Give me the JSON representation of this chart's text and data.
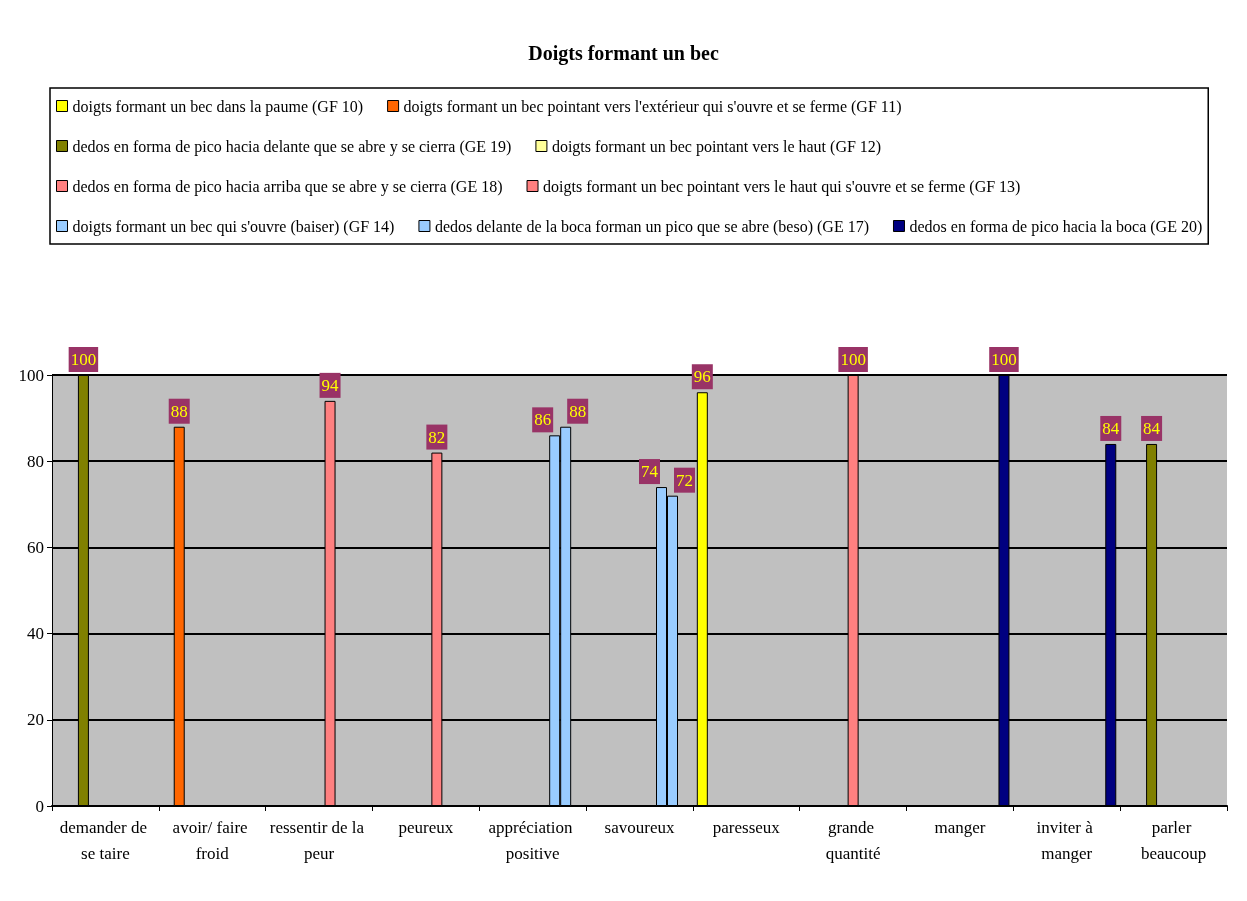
{
  "chart_data": {
    "type": "bar",
    "title": "Doigts formant un bec",
    "categories": [
      "demander de se taire",
      "avoir/ faire froid",
      "ressentir de la peur",
      "peureux",
      "appréciation positive",
      "savoureux",
      "paresseux",
      "grande quantité",
      "manger",
      "inviter à manger",
      "parler beaucoup"
    ],
    "series": [
      {
        "name": "doigts formant un bec dans la paume (GF 10)",
        "color": "#ffff00",
        "values": [
          null,
          null,
          null,
          null,
          null,
          null,
          96,
          null,
          null,
          null,
          null
        ]
      },
      {
        "name": "doigts formant un bec pointant vers l'extérieur qui s'ouvre et se ferme (GF 11)",
        "color": "#ff6600",
        "values": [
          null,
          88,
          null,
          null,
          null,
          null,
          null,
          null,
          null,
          null,
          null
        ]
      },
      {
        "name": "dedos en forma de pico hacia delante que se abre y se cierra (GE 19)",
        "color": "#808000",
        "values": [
          100,
          null,
          null,
          null,
          null,
          null,
          null,
          null,
          null,
          null,
          84
        ]
      },
      {
        "name": "doigts formant un bec pointant vers le haut (GF 12)",
        "color": "#ffff99",
        "values": [
          null,
          null,
          null,
          null,
          null,
          null,
          null,
          null,
          null,
          null,
          null
        ]
      },
      {
        "name": "dedos en forma de pico hacia arriba que se abre y se cierra (GE 18)",
        "color": "#ff8080",
        "values": [
          null,
          null,
          null,
          null,
          null,
          null,
          null,
          100,
          null,
          null,
          null
        ]
      },
      {
        "name": "doigts formant un bec pointant vers le haut qui s'ouvre et se ferme (GF 13)",
        "color": "#ff8080",
        "values": [
          null,
          null,
          94,
          82,
          null,
          null,
          null,
          null,
          null,
          null,
          null
        ]
      },
      {
        "name": "doigts formant un bec qui s'ouvre (baiser) (GF 14)",
        "color": "#99ccff",
        "values": [
          null,
          null,
          null,
          null,
          86,
          74,
          null,
          null,
          null,
          null,
          null
        ]
      },
      {
        "name": "dedos delante de la boca forman un pico que se abre (beso) (GE 17)",
        "color": "#99ccff",
        "values": [
          null,
          null,
          null,
          null,
          88,
          72,
          null,
          null,
          null,
          null,
          null
        ]
      },
      {
        "name": "dedos en forma de pico hacia la boca (GE 20)",
        "color": "#000080",
        "values": [
          null,
          null,
          null,
          null,
          null,
          null,
          null,
          null,
          100,
          84,
          null
        ]
      }
    ],
    "ylim": [
      0,
      100
    ],
    "yticks": [
      0,
      20,
      40,
      60,
      80,
      100
    ],
    "grid": "y",
    "legend": "top",
    "data_labels": true
  }
}
